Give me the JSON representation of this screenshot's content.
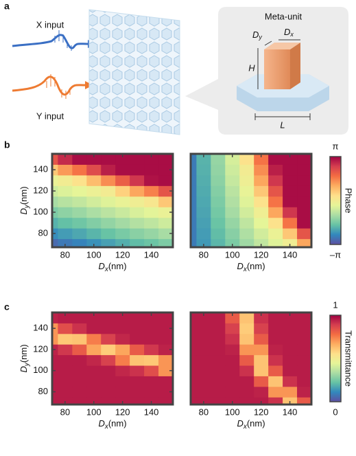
{
  "panel_labels": [
    "a",
    "b",
    "c"
  ],
  "illustration": {
    "x_input": "X input",
    "y_input": "Y input",
    "inset_title": "Meta-unit",
    "dim_dy": {
      "symbol": "D",
      "sub": "y"
    },
    "dim_dx": {
      "symbol": "D",
      "sub": "x"
    },
    "dim_h": "H",
    "dim_l": "L"
  },
  "chart_data": [
    {
      "type": "heatmap",
      "x": [
        70,
        80,
        90,
        100,
        110,
        120,
        130,
        140,
        150
      ],
      "y": [
        70,
        80,
        90,
        100,
        110,
        120,
        130,
        140,
        150
      ],
      "values": [
        [
          -2.8,
          -2.63,
          -2.5,
          -2.33,
          -2.15,
          -1.98,
          -1.81,
          -1.68,
          -1.51
        ],
        [
          -2.37,
          -2.2,
          -2.07,
          -1.9,
          -1.72,
          -1.55,
          -1.38,
          -1.25,
          -1.08
        ],
        [
          -1.94,
          -1.77,
          -1.64,
          -1.46,
          -1.29,
          -1.12,
          -0.95,
          -0.82,
          -0.65
        ],
        [
          -1.51,
          -1.34,
          -1.21,
          -1.03,
          -0.86,
          -0.69,
          -0.52,
          -0.39,
          -0.22
        ],
        [
          -1.08,
          -0.9,
          -0.78,
          -0.6,
          -0.43,
          -0.26,
          -0.09,
          0.14,
          0.7
        ],
        [
          -0.65,
          -0.47,
          -0.34,
          -0.17,
          0,
          0.56,
          1.12,
          1.54,
          2.1
        ],
        [
          -0.22,
          -0.04,
          0.28,
          0.84,
          1.4,
          1.96,
          2.52,
          2.94,
          3
        ],
        [
          0.7,
          1.26,
          1.68,
          2.24,
          2.8,
          3,
          3,
          3,
          3
        ],
        [
          2.1,
          2.66,
          3,
          3,
          3,
          3,
          3,
          3,
          3
        ]
      ],
      "xlim": [
        71,
        155
      ],
      "ylim": [
        67,
        155
      ],
      "xticks": [
        80,
        100,
        120,
        140
      ],
      "yticks": [
        80,
        100,
        120,
        140
      ],
      "xlabel": {
        "symbol": "D",
        "sub": "x",
        "unit": "(nm)"
      },
      "ylabel": {
        "symbol": "D",
        "sub": "y",
        "unit": "(nm)"
      },
      "zlim": [
        -3.14,
        3.14
      ],
      "colormap": [
        "#5e4fa2",
        "#3288bd",
        "#66c2a5",
        "#abdda4",
        "#e6f598",
        "#fee08b",
        "#fdae61",
        "#f46d43",
        "#d53e4f",
        "#9e0142"
      ]
    },
    {
      "type": "heatmap",
      "x": [
        70,
        80,
        90,
        100,
        110,
        120,
        130,
        140,
        150
      ],
      "y": [
        70,
        80,
        90,
        100,
        110,
        120,
        130,
        140,
        150
      ],
      "values": [
        [
          -2.6,
          -2.24,
          -1.88,
          -1.52,
          -1.16,
          -0.79,
          -0.43,
          -0.07,
          1.12
        ],
        [
          -2.6,
          -2.2,
          -1.8,
          -1.4,
          -1,
          -0.6,
          -0.2,
          0.7,
          2.1
        ],
        [
          -2.6,
          -2.15,
          -1.7,
          -1.26,
          -0.81,
          -0.36,
          0.28,
          1.68,
          3
        ],
        [
          -2.6,
          -2.1,
          -1.6,
          -1.1,
          -0.6,
          -0.1,
          1.12,
          2.52,
          3
        ],
        [
          -2.6,
          -2.06,
          -1.52,
          -0.98,
          -0.43,
          0.28,
          1.68,
          3,
          3
        ],
        [
          -2.6,
          -2.02,
          -1.44,
          -0.87,
          -0.29,
          0.7,
          2.1,
          3,
          3
        ],
        [
          -2.6,
          -1.98,
          -1.36,
          -0.74,
          -0.12,
          1.12,
          2.52,
          3,
          3
        ],
        [
          -2.6,
          -1.95,
          -1.3,
          -0.65,
          0,
          1.4,
          2.8,
          3,
          3
        ],
        [
          -2.6,
          -1.92,
          -1.26,
          -0.55,
          0.28,
          1.68,
          3,
          3,
          3
        ]
      ],
      "xlim": [
        71,
        155
      ],
      "ylim": [
        67,
        155
      ],
      "xticks": [
        80,
        100,
        120,
        140
      ],
      "xlabel": {
        "symbol": "D",
        "sub": "x",
        "unit": "(nm)"
      },
      "zlim": [
        -3.14,
        3.14
      ],
      "colormap": [
        "#5e4fa2",
        "#3288bd",
        "#66c2a5",
        "#abdda4",
        "#e6f598",
        "#fee08b",
        "#fdae61",
        "#f46d43",
        "#d53e4f",
        "#9e0142"
      ],
      "colorbar": {
        "label": "Phase",
        "ticks": [
          {
            "value": -3.14,
            "label": "–π"
          },
          {
            "value": 3.14,
            "label": "π"
          }
        ]
      }
    },
    {
      "type": "heatmap",
      "x": [
        70,
        80,
        90,
        100,
        110,
        120,
        130,
        140,
        150
      ],
      "y": [
        70,
        80,
        90,
        100,
        110,
        120,
        130,
        140,
        150
      ],
      "values": [
        [
          0.95,
          0.95,
          0.95,
          0.95,
          0.95,
          0.95,
          0.95,
          0.95,
          0.95
        ],
        [
          0.95,
          0.95,
          0.95,
          0.95,
          0.95,
          0.95,
          0.95,
          0.95,
          0.95
        ],
        [
          0.95,
          0.95,
          0.95,
          0.95,
          0.95,
          0.95,
          0.95,
          0.95,
          0.95
        ],
        [
          0.95,
          0.95,
          0.95,
          0.95,
          0.95,
          0.93,
          0.91,
          0.85,
          0.71
        ],
        [
          0.95,
          0.95,
          0.95,
          0.93,
          0.88,
          0.75,
          0.62,
          0.61,
          0.71
        ],
        [
          0.94,
          0.9,
          0.82,
          0.68,
          0.6,
          0.68,
          0.82,
          0.9,
          0.94
        ],
        [
          0.71,
          0.61,
          0.62,
          0.75,
          0.88,
          0.93,
          0.95,
          0.95,
          0.95
        ],
        [
          0.71,
          0.85,
          0.91,
          0.95,
          0.95,
          0.95,
          0.95,
          0.95,
          0.95
        ],
        [
          0.94,
          0.95,
          0.95,
          0.95,
          0.95,
          0.95,
          0.95,
          0.95,
          0.95
        ]
      ],
      "xlim": [
        71,
        155
      ],
      "ylim": [
        68,
        155
      ],
      "xticks": [
        80,
        100,
        120,
        140
      ],
      "yticks": [
        80,
        100,
        120,
        140
      ],
      "xlabel": {
        "symbol": "D",
        "sub": "x",
        "unit": "(nm)"
      },
      "ylabel": {
        "symbol": "D",
        "sub": "y",
        "unit": "(nm)"
      },
      "zlim": [
        0,
        1
      ],
      "colormap": [
        "#5e4fa2",
        "#3288bd",
        "#66c2a5",
        "#abdda4",
        "#e6f598",
        "#fee08b",
        "#fdae61",
        "#f46d43",
        "#d53e4f",
        "#9e0142"
      ]
    },
    {
      "type": "heatmap",
      "x": [
        70,
        80,
        90,
        100,
        110,
        120,
        130,
        140,
        150
      ],
      "y": [
        70,
        80,
        90,
        100,
        110,
        120,
        130,
        140,
        150
      ],
      "values": [
        [
          0.95,
          0.95,
          0.95,
          0.95,
          0.95,
          0.95,
          0.91,
          0.62,
          0.82
        ],
        [
          0.95,
          0.95,
          0.95,
          0.95,
          0.95,
          0.94,
          0.71,
          0.71,
          0.94
        ],
        [
          0.95,
          0.95,
          0.95,
          0.95,
          0.95,
          0.82,
          0.62,
          0.91,
          0.95
        ],
        [
          0.95,
          0.95,
          0.95,
          0.95,
          0.91,
          0.62,
          0.82,
          0.95,
          0.95
        ],
        [
          0.95,
          0.95,
          0.95,
          0.95,
          0.82,
          0.62,
          0.91,
          0.95,
          0.95
        ],
        [
          0.95,
          0.95,
          0.95,
          0.94,
          0.71,
          0.71,
          0.94,
          0.95,
          0.95
        ],
        [
          0.95,
          0.95,
          0.95,
          0.91,
          0.62,
          0.82,
          0.95,
          0.95,
          0.95
        ],
        [
          0.95,
          0.95,
          0.95,
          0.88,
          0.6,
          0.88,
          0.95,
          0.95,
          0.95
        ],
        [
          0.95,
          0.95,
          0.95,
          0.82,
          0.62,
          0.91,
          0.95,
          0.95,
          0.95
        ]
      ],
      "xlim": [
        71,
        155
      ],
      "ylim": [
        68,
        155
      ],
      "xticks": [
        80,
        100,
        120,
        140
      ],
      "xlabel": {
        "symbol": "D",
        "sub": "x",
        "unit": "(nm)"
      },
      "zlim": [
        0,
        1
      ],
      "colormap": [
        "#5e4fa2",
        "#3288bd",
        "#66c2a5",
        "#abdda4",
        "#e6f598",
        "#fee08b",
        "#fdae61",
        "#f46d43",
        "#d53e4f",
        "#9e0142"
      ],
      "colorbar": {
        "label": "Transmittance",
        "ticks": [
          0,
          1
        ]
      }
    }
  ]
}
